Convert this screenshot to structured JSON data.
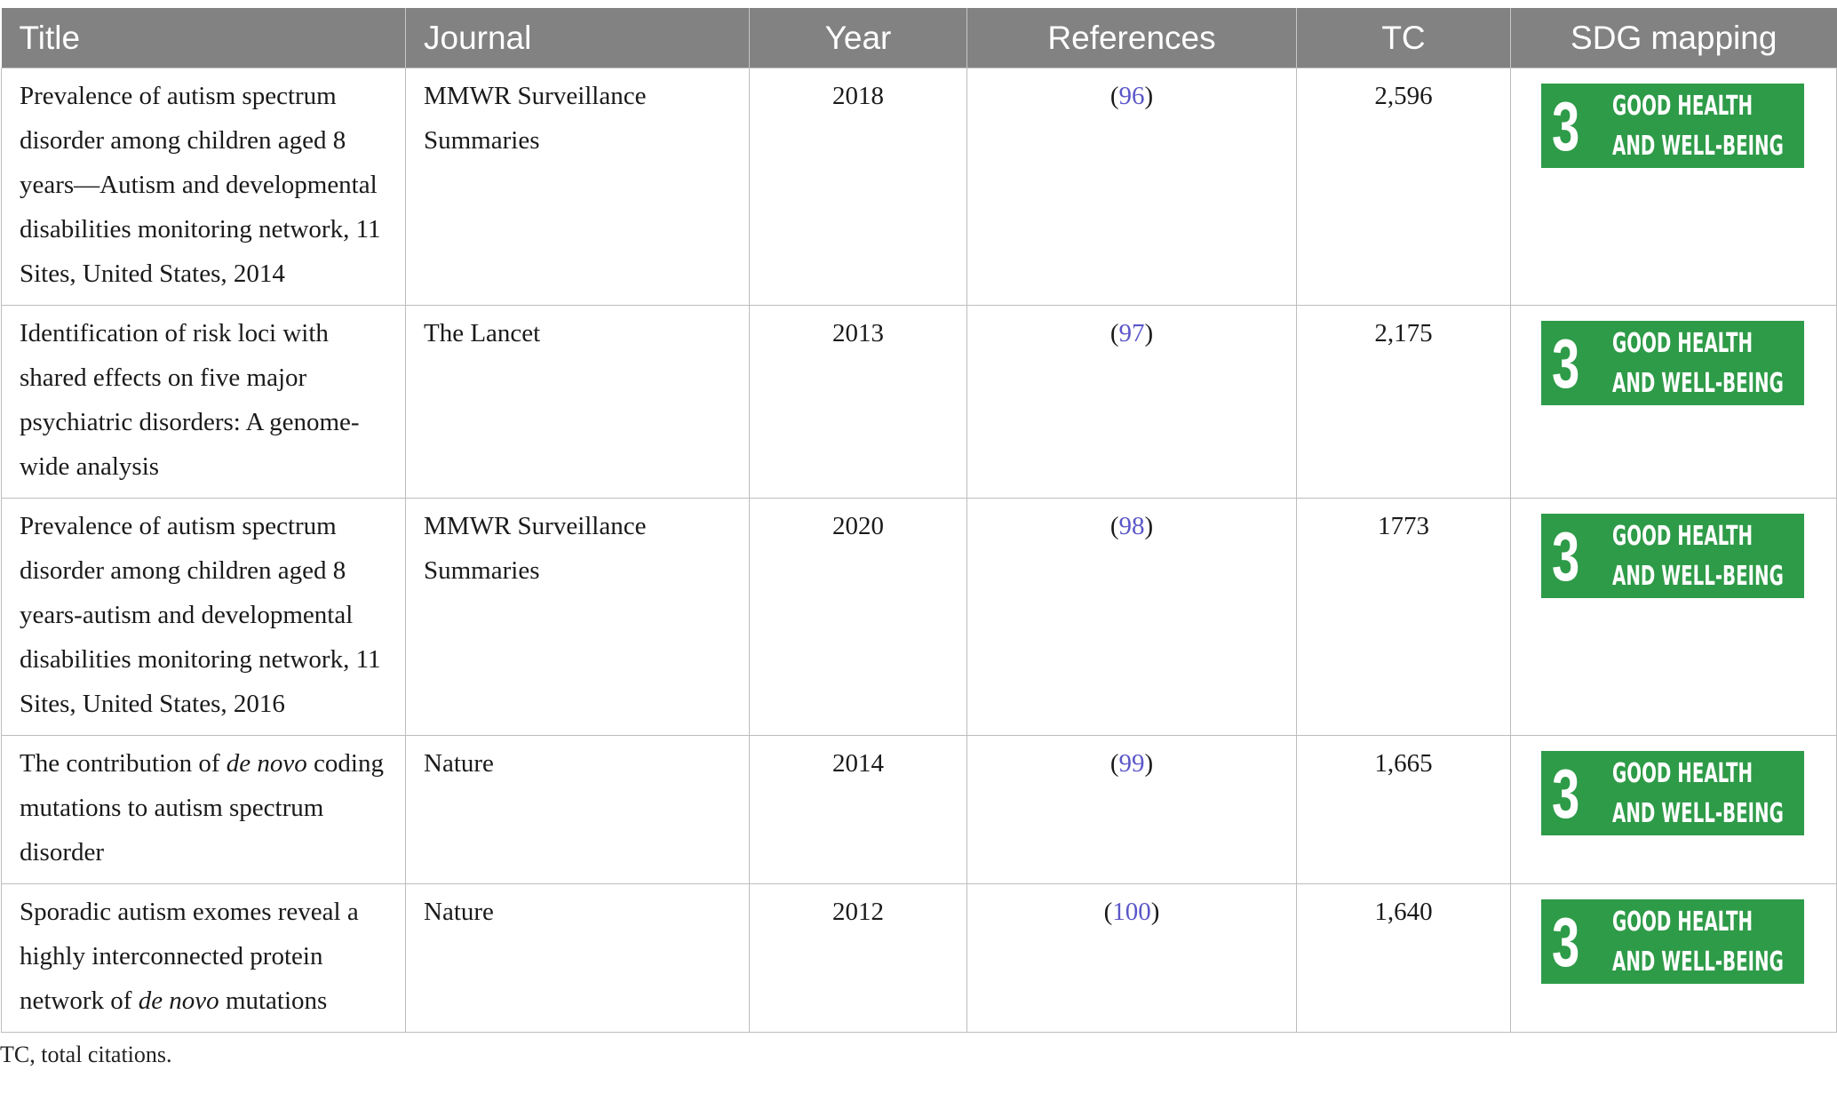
{
  "table": {
    "headers": [
      "Title",
      "Journal",
      "Year",
      "References",
      "TC",
      "SDG mapping"
    ],
    "rows": [
      {
        "title_html": "Prevalence of autism spectrum disorder among children aged 8 years—Autism and developmental disabilities monitoring network, 11 Sites, United States, 2014",
        "journal": "MMWR Surveillance Summaries",
        "year": "2018",
        "ref_open": "(",
        "ref_num": "96",
        "ref_close": ")",
        "tc": "2,596",
        "sdg_num": "3",
        "sdg_line1": "GOOD HEALTH",
        "sdg_line2": "AND WELL-BEING"
      },
      {
        "title_html": "Identification of risk loci with shared effects on five major psychiatric disorders: A genome-wide analysis",
        "journal": "The Lancet",
        "year": "2013",
        "ref_open": "(",
        "ref_num": "97",
        "ref_close": ")",
        "tc": "2,175",
        "sdg_num": "3",
        "sdg_line1": "GOOD HEALTH",
        "sdg_line2": "AND WELL-BEING"
      },
      {
        "title_html": "Prevalence of autism spectrum disorder among children aged 8 years-autism and developmental disabilities monitoring network, 11 Sites, United States, 2016",
        "journal": "MMWR Surveillance Summaries",
        "year": "2020",
        "ref_open": "(",
        "ref_num": "98",
        "ref_close": ")",
        "tc": "1773",
        "sdg_num": "3",
        "sdg_line1": "GOOD HEALTH",
        "sdg_line2": "AND WELL-BEING"
      },
      {
        "title_pre": "The contribution of ",
        "title_em": "de novo",
        "title_post": " coding mutations to autism spectrum disorder",
        "journal": "Nature",
        "year": "2014",
        "ref_open": "(",
        "ref_num": "99",
        "ref_close": ")",
        "tc": "1,665",
        "sdg_num": "3",
        "sdg_line1": "GOOD HEALTH",
        "sdg_line2": "AND WELL-BEING"
      },
      {
        "title_pre": "Sporadic autism exomes reveal a highly interconnected protein network of ",
        "title_em": "de novo",
        "title_post": " mutations",
        "journal": "Nature",
        "year": "2012",
        "ref_open": "(",
        "ref_num": "100",
        "ref_close": ")",
        "tc": "1,640",
        "sdg_num": "3",
        "sdg_line1": "GOOD HEALTH",
        "sdg_line2": "AND WELL-BEING"
      }
    ]
  },
  "footnote": "TC, total citations.",
  "colors": {
    "header_bg": "#828282",
    "link": "#5b57c9",
    "sdg_green": "#2e9b48"
  },
  "icons": [
    "sdg-goal-3-badge"
  ]
}
